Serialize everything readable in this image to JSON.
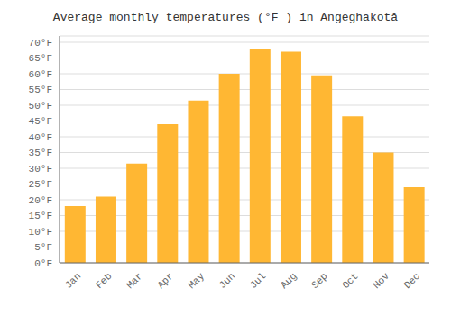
{
  "chart_data": {
    "type": "bar",
    "title": "Average monthly temperatures (°F ) in Angeghakotâ",
    "categories": [
      "Jan",
      "Feb",
      "Mar",
      "Apr",
      "May",
      "Jun",
      "Jul",
      "Aug",
      "Sep",
      "Oct",
      "Nov",
      "Dec"
    ],
    "values": [
      18,
      21,
      31.5,
      44,
      51.5,
      60,
      68,
      67,
      59.5,
      46.5,
      35,
      24
    ],
    "color": "#FFB733",
    "ylim": [
      0,
      72
    ],
    "yticks": [
      {
        "value": 0,
        "label": "0°F"
      },
      {
        "value": 5,
        "label": "5°F"
      },
      {
        "value": 10,
        "label": "10°F"
      },
      {
        "value": 15,
        "label": "15°F"
      },
      {
        "value": 20,
        "label": "20°F"
      },
      {
        "value": 25,
        "label": "25°F"
      },
      {
        "value": 30,
        "label": "30°F"
      },
      {
        "value": 35,
        "label": "35°F"
      },
      {
        "value": 40,
        "label": "40°F"
      },
      {
        "value": 45,
        "label": "45°F"
      },
      {
        "value": 50,
        "label": "50°F"
      },
      {
        "value": 55,
        "label": "55°F"
      },
      {
        "value": 60,
        "label": "60°F"
      },
      {
        "value": 65,
        "label": "65°F"
      },
      {
        "value": 70,
        "label": "70°F"
      }
    ],
    "grid": true
  }
}
